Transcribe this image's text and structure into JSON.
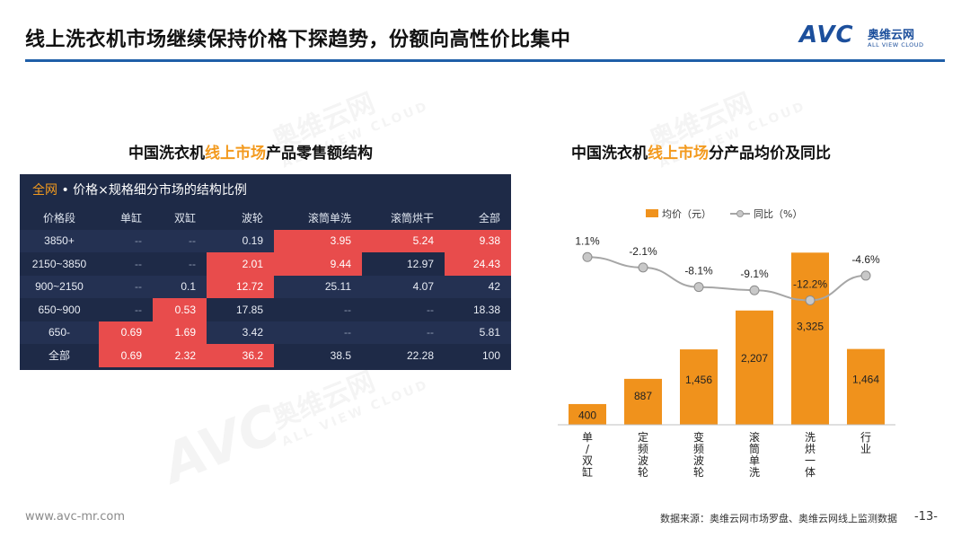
{
  "title": "线上洗衣机市场继续保持价格下探趋势，份额向高性价比集中",
  "logo": {
    "mark": "AVC",
    "name_cn": "奥维云网",
    "name_en": "ALL VIEW CLOUD"
  },
  "watermark": {
    "cn": "奥维云网",
    "en": "ALL VIEW CLOUD"
  },
  "left_title": {
    "prefix": "中国洗衣机",
    "highlight": "线上市场",
    "suffix": "产品零售额结构"
  },
  "right_title": {
    "prefix": "中国洗衣机",
    "highlight": "线上市场",
    "suffix": "分产品均价及同比"
  },
  "table": {
    "header_highlight": "全网",
    "header_text": " • 价格×规格细分市场的结构比例",
    "columns": [
      "价格段",
      "单缸",
      "双缸",
      "波轮",
      "滚筒单洗",
      "滚筒烘干",
      "全部"
    ],
    "rows": [
      [
        "3850+",
        "--",
        "--",
        "0.19",
        "3.95",
        "5.24",
        "9.38"
      ],
      [
        "2150~3850",
        "--",
        "--",
        "2.01",
        "9.44",
        "12.97",
        "24.43"
      ],
      [
        "900~2150",
        "--",
        "0.1",
        "12.72",
        "25.11",
        "4.07",
        "42"
      ],
      [
        "650~900",
        "--",
        "0.53",
        "17.85",
        "--",
        "--",
        "18.38"
      ],
      [
        "650-",
        "0.69",
        "1.69",
        "3.42",
        "--",
        "--",
        "5.81"
      ],
      [
        "全部",
        "0.69",
        "2.32",
        "36.2",
        "38.5",
        "22.28",
        "100"
      ]
    ],
    "highlighted_cells": [
      [
        0,
        4
      ],
      [
        0,
        5
      ],
      [
        0,
        6
      ],
      [
        1,
        3
      ],
      [
        1,
        4
      ],
      [
        1,
        6
      ],
      [
        2,
        3
      ],
      [
        3,
        2
      ],
      [
        4,
        1
      ],
      [
        4,
        2
      ],
      [
        5,
        1
      ],
      [
        5,
        2
      ],
      [
        5,
        3
      ]
    ]
  },
  "chart_data": {
    "type": "bar",
    "categories": [
      "单/双缸",
      "定频波轮",
      "变频波轮",
      "滚筒单洗",
      "洗烘一体",
      "行业"
    ],
    "series": [
      {
        "name": "均价（元）",
        "type": "bar",
        "values": [
          400,
          887,
          1456,
          2207,
          3325,
          1464
        ],
        "labels": [
          "400",
          "887",
          "1,456",
          "2,207",
          "3,325",
          "1,464"
        ]
      },
      {
        "name": "同比（%）",
        "type": "line",
        "values": [
          1.1,
          -2.1,
          -8.1,
          -9.1,
          -12.2,
          -4.6
        ],
        "labels": [
          "1.1%",
          "-2.1%",
          "-8.1%",
          "-9.1%",
          "-12.2%",
          "-4.6%"
        ]
      }
    ],
    "colors": {
      "bar": "#f0921c",
      "line": "#a6a6a6",
      "marker": "#c8c8c8"
    },
    "legend_position": "top",
    "grid": false
  },
  "footer": {
    "url": "www.avc-mr.com",
    "source": "数据来源：奥维云网市场罗盘、奥维云网线上监测数据",
    "page": "-13-"
  }
}
